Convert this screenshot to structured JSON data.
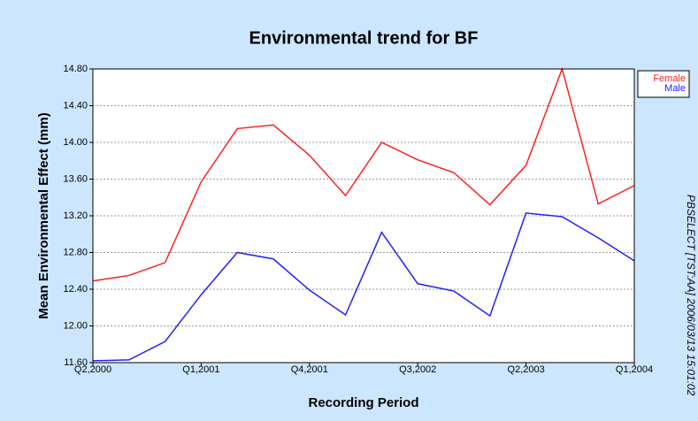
{
  "chart_data": {
    "type": "line",
    "title": "Environmental trend for BF",
    "x_label": "Recording Period",
    "y_label": "Mean Environmental Effect (mm)",
    "annotation": "PBSELECT [TST:AA] 2006/03/13 15:01:02",
    "categories": [
      "Q2,2000",
      null,
      null,
      "Q1,2001",
      null,
      null,
      "Q4,2001",
      null,
      null,
      "Q3,2002",
      null,
      null,
      "Q2,2003",
      null,
      null,
      "Q1,2004"
    ],
    "series": [
      {
        "name": "Female",
        "color": "#ff2020",
        "values": [
          12.49,
          12.55,
          12.69,
          13.57,
          14.15,
          14.19,
          13.86,
          13.42,
          14.0,
          13.81,
          13.67,
          13.32,
          13.75,
          14.8,
          13.33,
          13.53
        ]
      },
      {
        "name": "Male",
        "color": "#2020ff",
        "values": [
          11.62,
          11.63,
          11.83,
          12.34,
          12.8,
          12.73,
          12.39,
          12.12,
          13.02,
          12.46,
          12.38,
          12.11,
          13.23,
          13.19,
          12.96,
          12.71
        ]
      }
    ],
    "ylim": [
      11.6,
      14.8
    ],
    "yticks": [
      {
        "value": 11.6,
        "label": "11.60"
      },
      {
        "value": 12.0,
        "label": "12.00"
      },
      {
        "value": 12.4,
        "label": "12.40"
      },
      {
        "value": 12.8,
        "label": "12.80"
      },
      {
        "value": 13.2,
        "label": "13.20"
      },
      {
        "value": 13.6,
        "label": "13.60"
      },
      {
        "value": 14.0,
        "label": "14.00"
      },
      {
        "value": 14.4,
        "label": "14.40"
      },
      {
        "value": 14.8,
        "label": "14.80"
      }
    ],
    "grid": true,
    "legend_position": "right"
  }
}
